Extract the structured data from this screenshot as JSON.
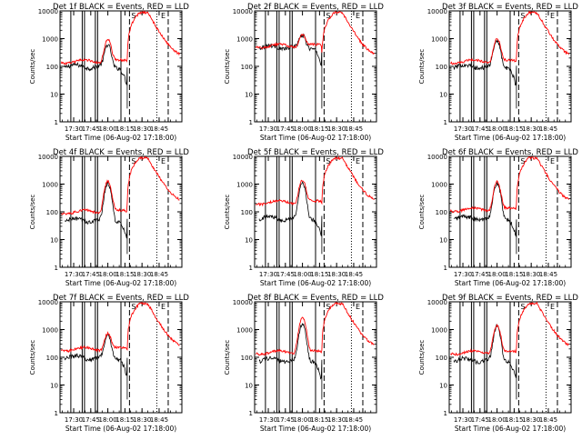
{
  "chart_data": {
    "type": "line",
    "ylabel": "Counts/sec",
    "xlabel": "Start Time (06-Aug-02 17:18:00)",
    "x_tick_labels": [
      "17:30",
      "17:45",
      "18:00",
      "18:15",
      "18:30",
      "18:45"
    ],
    "x_ticks_min": [
      30,
      45,
      60,
      75,
      90,
      105
    ],
    "xlim_min": [
      18,
      125
    ],
    "y_scale": "log",
    "ylim": [
      1,
      10000
    ],
    "y_tick_labels": [
      "1",
      "10",
      "100",
      "1000",
      "10000"
    ],
    "y_tick_values": [
      1,
      10,
      100,
      1000,
      10000
    ],
    "grid": false,
    "series_colors": {
      "events": "#000000",
      "lld": "#ff0000"
    },
    "solid_markers_min": [
      27.5,
      37.5,
      39.5,
      49,
      51,
      71.5
    ],
    "dashed_markers_min": [
      79,
      113
    ],
    "dotted_markers_min": [
      103
    ],
    "marker_labels": [
      "S",
      "E"
    ],
    "panels": [
      {
        "title": "Det 1f BLACK = Events, RED = LLD",
        "events_base": 100,
        "lld_base": 150,
        "peak_events": 500,
        "peak_lld": 800
      },
      {
        "title": "Det 2f BLACK = Events, RED = LLD",
        "events_base": 500,
        "lld_base": 550,
        "peak_events": 800,
        "peak_lld": 850
      },
      {
        "title": "Det 3f BLACK = Events, RED = LLD",
        "events_base": 100,
        "lld_base": 150,
        "peak_events": 800,
        "peak_lld": 900
      },
      {
        "title": "Det 4f BLACK = Events, RED = LLD",
        "events_base": 50,
        "lld_base": 100,
        "peak_events": 1000,
        "peak_lld": 1200
      },
      {
        "title": "Det 5f BLACK = Events, RED = LLD",
        "events_base": 60,
        "lld_base": 220,
        "peak_events": 1000,
        "peak_lld": 1200
      },
      {
        "title": "Det 6f BLACK = Events, RED = LLD",
        "events_base": 60,
        "lld_base": 120,
        "peak_events": 1000,
        "peak_lld": 1100
      },
      {
        "title": "Det 7f BLACK = Events, RED = LLD",
        "events_base": 100,
        "lld_base": 200,
        "peak_events": 500,
        "peak_lld": 550
      },
      {
        "title": "Det 8f BLACK = Events, RED = LLD",
        "events_base": 80,
        "lld_base": 150,
        "peak_events": 1500,
        "peak_lld": 2500
      },
      {
        "title": "Det 9f BLACK = Events, RED = LLD",
        "events_base": 80,
        "lld_base": 150,
        "peak_events": 1200,
        "peak_lld": 1300
      }
    ]
  }
}
